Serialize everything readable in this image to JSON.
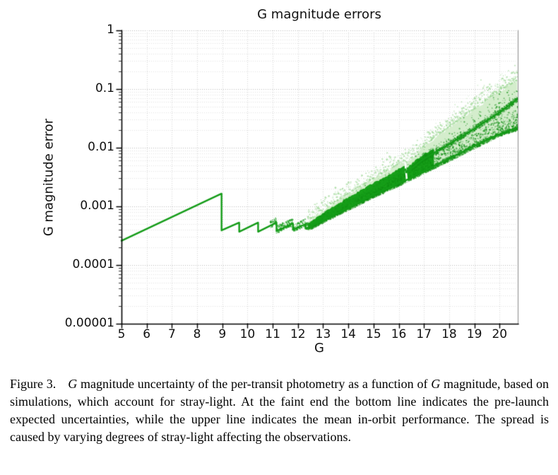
{
  "chart_data": {
    "type": "scatter",
    "title": "G magnitude errors",
    "xlabel": "G",
    "ylabel": "G magnitude error",
    "x_ticks": [
      5,
      6,
      7,
      8,
      9,
      10,
      11,
      12,
      13,
      14,
      15,
      16,
      17,
      18,
      19,
      20
    ],
    "y_tick_labels": [
      "1",
      "0.1",
      "0.01",
      "0.001",
      "0.0001",
      "0.00001"
    ],
    "y_tick_values": [
      1,
      0.1,
      0.01,
      0.001,
      0.0001,
      1e-05
    ],
    "xlim": [
      5,
      20.72
    ],
    "ylim": [
      1e-05,
      1
    ],
    "y_scale": "log",
    "grid": true,
    "legend": "none",
    "colors": {
      "line_green": "#149c18",
      "dense_scatter_green": "#17a019",
      "band_light_green": "#d4edcc",
      "speckle_green": "#97d58e",
      "dark_speckle_green": "#108f13",
      "grid_major": "#bdbdbd",
      "grid_minor": "#e2e2e2",
      "axis": "#000000"
    },
    "annotations": {
      "discontinuity_at_G": 16.3
    },
    "series": [
      {
        "name": "prelaunch-sawtooth-and-bottom-line",
        "type": "line",
        "description": "pre-launch expected uncertainties (sawtooth at bright end, bottom line at faint end)",
        "points": [
          [
            5,
            0.00026
          ],
          [
            8.97,
            0.00165
          ],
          [
            8.97,
            0.00039
          ],
          [
            9.67,
            0.00053
          ],
          [
            9.67,
            0.00037
          ],
          [
            10.42,
            0.00053
          ],
          [
            10.42,
            0.00037
          ],
          [
            11.15,
            0.00053
          ],
          [
            11.15,
            0.00038
          ],
          [
            11.8,
            0.00051
          ],
          [
            11.8,
            0.0004
          ],
          [
            12.3,
            0.0005
          ],
          [
            12.3,
            0.00042
          ],
          [
            13,
            0.00058
          ],
          [
            14,
            0.00095
          ],
          [
            15,
            0.0016
          ],
          [
            16,
            0.0025
          ],
          [
            16.3,
            0.0028
          ],
          [
            17,
            0.004
          ],
          [
            18,
            0.0065
          ],
          [
            19,
            0.0108
          ],
          [
            20,
            0.017
          ],
          [
            20.72,
            0.022
          ]
        ]
      },
      {
        "name": "inorbit-mean-line",
        "type": "line",
        "description": "mean in-orbit performance (upper line)",
        "points": [
          [
            12.6,
            0.0005
          ],
          [
            13,
            0.00066
          ],
          [
            14,
            0.00115
          ],
          [
            15,
            0.002
          ],
          [
            16,
            0.0036
          ],
          [
            16.27,
            0.0043
          ],
          [
            16.3,
            0.0038
          ],
          [
            17,
            0.0065
          ],
          [
            18,
            0.0115
          ],
          [
            19,
            0.021
          ],
          [
            20,
            0.04
          ],
          [
            20.72,
            0.068
          ]
        ]
      },
      {
        "name": "straylight-spread-band",
        "type": "band",
        "description": "spread caused by varying degrees of stray-light",
        "upper": [
          [
            12.4,
            0.00055
          ],
          [
            13,
            0.00085
          ],
          [
            14,
            0.0016
          ],
          [
            15,
            0.0029
          ],
          [
            16,
            0.0052
          ],
          [
            16.27,
            0.006
          ],
          [
            16.3,
            0.0054
          ],
          [
            17,
            0.0105
          ],
          [
            18,
            0.022
          ],
          [
            19,
            0.045
          ],
          [
            20,
            0.09
          ],
          [
            20.72,
            0.14
          ]
        ],
        "lower": [
          [
            12.4,
            0.00038
          ],
          [
            13,
            0.00052
          ],
          [
            14,
            0.00085
          ],
          [
            15,
            0.0014
          ],
          [
            16,
            0.0022
          ],
          [
            17,
            0.0036
          ],
          [
            18,
            0.0058
          ],
          [
            19,
            0.0096
          ],
          [
            20,
            0.0155
          ],
          [
            20.72,
            0.0195
          ]
        ],
        "dense_core_upper": [
          [
            12.4,
            0.0005
          ],
          [
            13,
            0.00078
          ],
          [
            14,
            0.0014
          ],
          [
            15,
            0.0025
          ],
          [
            16,
            0.0043
          ],
          [
            16.27,
            0.005
          ],
          [
            16.3,
            0.0044
          ],
          [
            17,
            0.008
          ],
          [
            17.4,
            0.0095
          ]
        ]
      }
    ]
  },
  "caption": {
    "label": "Figure 3.",
    "g1": "G",
    "seg1": " magnitude uncertainty of the per-transit photometry as a function of ",
    "g2": "G",
    "seg2": " magnitude, based on simulations, which account for stray-light. At the faint end the bottom line indicates the pre-launch expected uncertainties, while the upper line indicates the mean in-orbit performance. The spread is caused by varying degrees of stray-light affecting the observations."
  }
}
